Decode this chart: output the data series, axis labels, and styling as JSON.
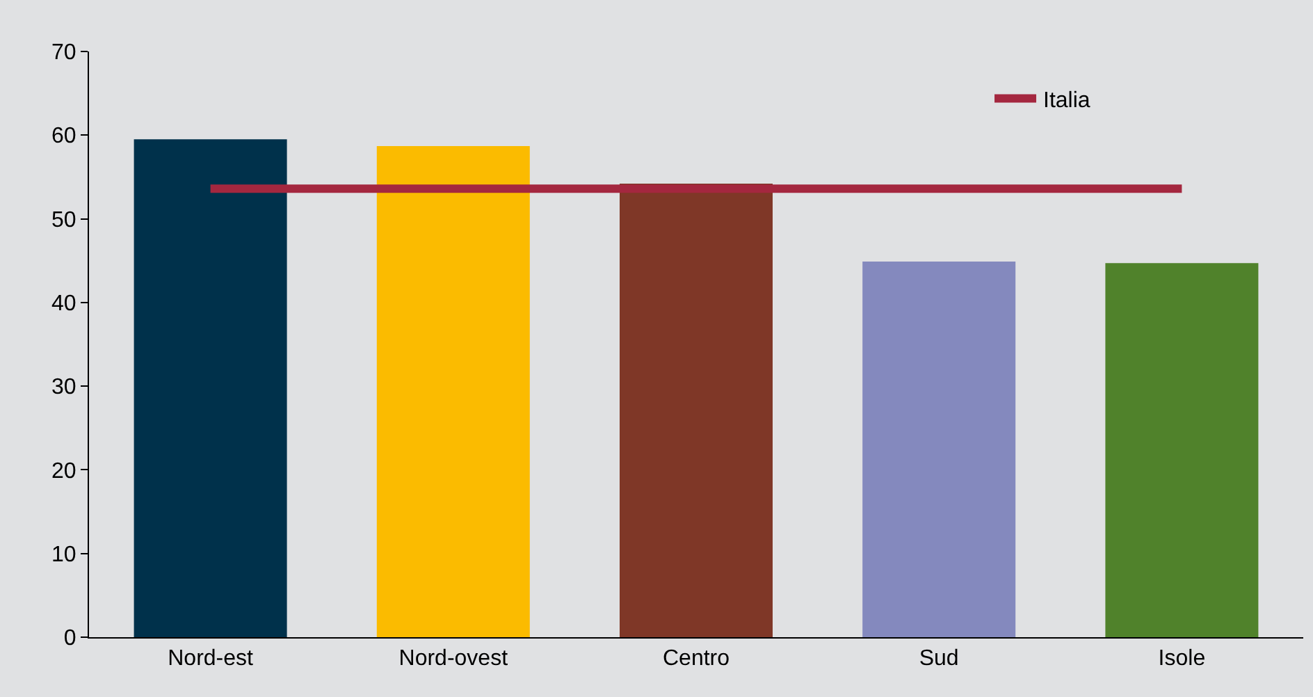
{
  "chart_data": {
    "type": "bar",
    "categories": [
      "Nord-est",
      "Nord-ovest",
      "Centro",
      "Sud",
      "Isole"
    ],
    "series": [
      {
        "colors": [
          "#00314b",
          "#fbbb00",
          "#7f3727",
          "#8489be",
          "#50822b"
        ],
        "values": [
          59.5,
          58.7,
          54.2,
          44.9,
          44.7
        ]
      },
      {
        "type": "line",
        "name": "Italia",
        "color": "#a4273f",
        "values": [
          53.6,
          53.6,
          53.6,
          53.6,
          53.6
        ]
      }
    ],
    "ylim": [
      0,
      70
    ],
    "yticks": [
      0,
      10,
      20,
      30,
      40,
      50,
      60,
      70
    ],
    "grid": false,
    "legend": "top right",
    "marker": "none",
    "line_style": "solid"
  }
}
